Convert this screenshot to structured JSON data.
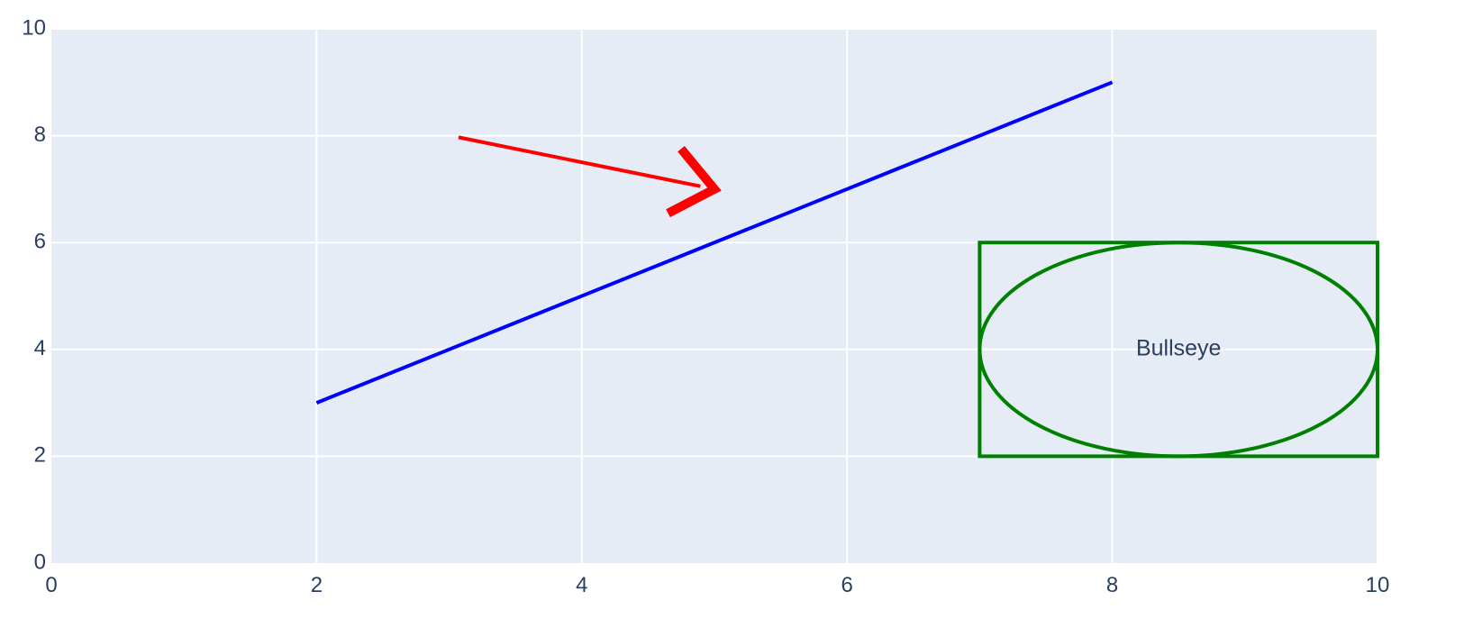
{
  "chart_data": {
    "type": "line",
    "title": "",
    "xlabel": "",
    "ylabel": "",
    "xlim": [
      0,
      10
    ],
    "ylim": [
      0,
      10
    ],
    "x_ticks": [
      0,
      2,
      4,
      6,
      8,
      10
    ],
    "y_ticks": [
      0,
      2,
      4,
      6,
      8,
      10
    ],
    "x_tick_labels": [
      "0",
      "2",
      "4",
      "6",
      "8",
      "10"
    ],
    "y_tick_labels": [
      "0",
      "2",
      "4",
      "6",
      "8",
      "10"
    ],
    "grid": true,
    "series": [
      {
        "name": "line",
        "x": [
          2,
          8
        ],
        "y": [
          3,
          9
        ],
        "color": "#0000ff"
      }
    ],
    "shapes": [
      {
        "type": "arrow",
        "x0": 3.07,
        "y0": 7.97,
        "x1": 5.0,
        "y1": 7.0,
        "color": "#ff0000"
      },
      {
        "type": "rect",
        "x0": 7,
        "y0": 2,
        "x1": 10,
        "y1": 6,
        "color": "#008000"
      },
      {
        "type": "ellipse",
        "x0": 7,
        "y0": 2,
        "x1": 10,
        "y1": 6,
        "color": "#008000"
      }
    ],
    "annotations": [
      {
        "text": "Bullseye",
        "x": 8.5,
        "y": 4
      }
    ],
    "colors": {
      "plot_background": "#e5ecf6",
      "grid": "#ffffff",
      "tick_text": "#2a3f5f"
    }
  }
}
